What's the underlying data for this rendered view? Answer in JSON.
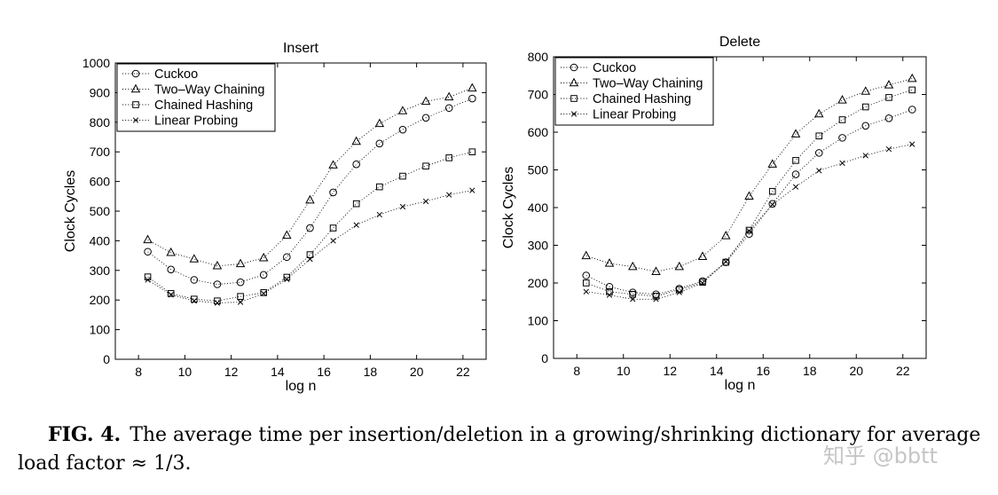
{
  "chart_data": [
    {
      "type": "line",
      "title": "Insert",
      "xlabel": "log n",
      "ylabel": "Clock Cycles",
      "xlim": [
        7,
        23
      ],
      "ylim": [
        0,
        1000
      ],
      "xticks": [
        8,
        10,
        12,
        14,
        16,
        18,
        20,
        22
      ],
      "yticks": [
        0,
        100,
        200,
        300,
        400,
        500,
        600,
        700,
        800,
        900,
        1000
      ],
      "legend_position": "top-left",
      "x": [
        8.4,
        9.4,
        10.4,
        11.4,
        12.4,
        13.4,
        14.4,
        15.4,
        16.4,
        17.4,
        18.4,
        19.4,
        20.4,
        21.4,
        22.4
      ],
      "series": [
        {
          "name": "Cuckoo",
          "marker": "circle",
          "values": [
            363,
            303,
            268,
            253,
            260,
            285,
            345,
            443,
            563,
            658,
            728,
            775,
            815,
            848,
            880
          ]
        },
        {
          "name": "Two–Way Chaining",
          "marker": "triangle",
          "values": [
            403,
            360,
            338,
            315,
            322,
            342,
            418,
            537,
            655,
            735,
            795,
            838,
            870,
            885,
            915
          ]
        },
        {
          "name": "Chained Hashing",
          "marker": "square",
          "values": [
            278,
            222,
            203,
            197,
            212,
            225,
            277,
            353,
            443,
            525,
            582,
            618,
            652,
            680,
            700
          ]
        },
        {
          "name": "Linear Probing",
          "marker": "x",
          "values": [
            268,
            218,
            197,
            190,
            193,
            222,
            270,
            338,
            400,
            453,
            488,
            515,
            533,
            555,
            570
          ]
        }
      ]
    },
    {
      "type": "line",
      "title": "Delete",
      "xlabel": "log n",
      "ylabel": "Clock Cycles",
      "xlim": [
        7,
        23
      ],
      "ylim": [
        0,
        800
      ],
      "xticks": [
        8,
        10,
        12,
        14,
        16,
        18,
        20,
        22
      ],
      "yticks": [
        0,
        100,
        200,
        300,
        400,
        500,
        600,
        700,
        800
      ],
      "legend_position": "top-left",
      "x": [
        8.4,
        9.4,
        10.4,
        11.4,
        12.4,
        13.4,
        14.4,
        15.4,
        16.4,
        17.4,
        18.4,
        19.4,
        20.4,
        21.4,
        22.4
      ],
      "series": [
        {
          "name": "Cuckoo",
          "marker": "circle",
          "values": [
            220,
            190,
            175,
            170,
            185,
            205,
            255,
            330,
            410,
            488,
            545,
            585,
            617,
            637,
            660
          ]
        },
        {
          "name": "Two–Way Chaining",
          "marker": "triangle",
          "values": [
            272,
            252,
            243,
            230,
            243,
            270,
            325,
            430,
            515,
            595,
            648,
            685,
            708,
            725,
            742
          ]
        },
        {
          "name": "Chained Hashing",
          "marker": "square",
          "values": [
            200,
            177,
            170,
            165,
            182,
            202,
            255,
            340,
            443,
            525,
            590,
            633,
            667,
            692,
            712
          ]
        },
        {
          "name": "Linear Probing",
          "marker": "x",
          "values": [
            177,
            168,
            157,
            157,
            175,
            200,
            257,
            338,
            408,
            455,
            498,
            518,
            538,
            555,
            568
          ]
        }
      ]
    }
  ],
  "caption": {
    "label": "FIG. 4.",
    "text": "The average time per insertion/deletion in a growing/shrinking dictionary for average load factor ≈ 1/3."
  },
  "watermark": "知乎 @bbtt"
}
